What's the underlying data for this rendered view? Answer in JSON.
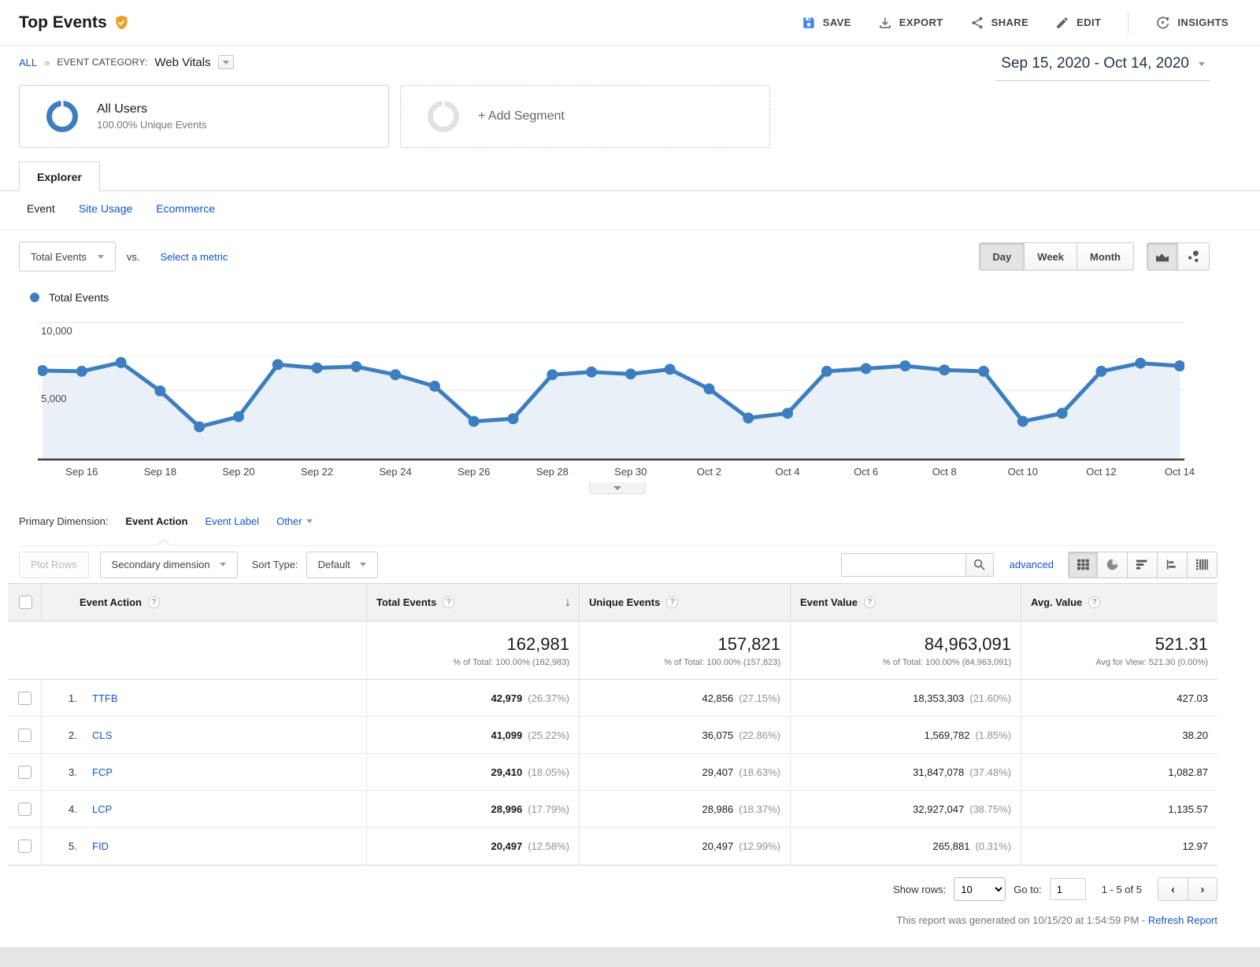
{
  "header": {
    "title": "Top Events",
    "actions": [
      {
        "label": "SAVE",
        "icon": "save-icon"
      },
      {
        "label": "EXPORT",
        "icon": "export-icon"
      },
      {
        "label": "SHARE",
        "icon": "share-icon"
      },
      {
        "label": "EDIT",
        "icon": "edit-icon"
      },
      {
        "label": "INSIGHTS",
        "icon": "insights-icon"
      }
    ]
  },
  "breadcrumb": {
    "all": "ALL",
    "separator": "»",
    "category_label": "EVENT CATEGORY:",
    "category_value": "Web Vitals"
  },
  "date_range": "Sep 15, 2020 - Oct 14, 2020",
  "segments": {
    "all_users": {
      "title": "All Users",
      "subtitle": "100.00% Unique Events"
    },
    "add_segment": "+ Add Segment"
  },
  "tabs": {
    "explorer": "Explorer",
    "subtabs": [
      {
        "label": "Event",
        "active": true
      },
      {
        "label": "Site Usage",
        "active": false
      },
      {
        "label": "Ecommerce",
        "active": false
      }
    ]
  },
  "metric_bar": {
    "metric": "Total Events",
    "vs": "vs.",
    "select_metric": "Select a metric",
    "granularity": [
      "Day",
      "Week",
      "Month"
    ],
    "active_granularity": "Day"
  },
  "legend": {
    "label": "Total Events",
    "color": "#3c7ebf"
  },
  "chart_data": {
    "type": "line",
    "title": "Total Events",
    "x": [
      "Sep 15",
      "Sep 16",
      "Sep 17",
      "Sep 18",
      "Sep 19",
      "Sep 20",
      "Sep 21",
      "Sep 22",
      "Sep 23",
      "Sep 24",
      "Sep 25",
      "Sep 26",
      "Sep 27",
      "Sep 28",
      "Sep 29",
      "Sep 30",
      "Oct 1",
      "Oct 2",
      "Oct 3",
      "Oct 4",
      "Oct 5",
      "Oct 6",
      "Oct 7",
      "Oct 8",
      "Oct 9",
      "Oct 10",
      "Oct 11",
      "Oct 12",
      "Oct 13",
      "Oct 14"
    ],
    "series": [
      {
        "name": "Total Events",
        "values": [
          6450,
          6400,
          7050,
          4950,
          2300,
          3050,
          6900,
          6650,
          6750,
          6150,
          5300,
          2700,
          2900,
          6150,
          6350,
          6200,
          6550,
          5100,
          2950,
          3300,
          6400,
          6600,
          6800,
          6500,
          6400,
          2700,
          3300,
          6400,
          7000,
          6800
        ]
      }
    ],
    "ylim": [
      0,
      10000
    ],
    "ytick_labels": [
      "5,000",
      "10,000"
    ],
    "yticks": [
      5000,
      10000
    ],
    "gridlines": [
      2500,
      5000,
      7500,
      10000
    ],
    "xtick_every": 2,
    "grid": true,
    "legend_position": "top-left",
    "line_color": "#3c7ebf",
    "fill_color": "#e9f0f8"
  },
  "dimension_bar": {
    "label": "Primary Dimension:",
    "options": [
      "Event Action",
      "Event Label",
      "Other"
    ],
    "active": "Event Action"
  },
  "table_controls": {
    "plot_rows": "Plot Rows",
    "secondary_dimension": "Secondary dimension",
    "sort_type_label": "Sort Type:",
    "sort_type_value": "Default",
    "search_value": "",
    "advanced": "advanced"
  },
  "table": {
    "columns": [
      "Event Action",
      "Total Events",
      "Unique Events",
      "Event Value",
      "Avg. Value"
    ],
    "sorted_column": "Total Events",
    "summary": {
      "total_events": "162,981",
      "total_events_sub": "% of Total: 100.00% (162,983)",
      "unique_events": "157,821",
      "unique_events_sub": "% of Total: 100.00% (157,823)",
      "event_value": "84,963,091",
      "event_value_sub": "% of Total: 100.00% (84,963,091)",
      "avg_value": "521.31",
      "avg_value_sub": "Avg for View: 521.30 (0.00%)"
    },
    "rows": [
      {
        "index": "1.",
        "action": "TTFB",
        "total_events": "42,979",
        "total_events_pct": "(26.37%)",
        "unique_events": "42,856",
        "unique_events_pct": "(27.15%)",
        "event_value": "18,353,303",
        "event_value_pct": "(21.60%)",
        "avg_value": "427.03"
      },
      {
        "index": "2.",
        "action": "CLS",
        "total_events": "41,099",
        "total_events_pct": "(25.22%)",
        "unique_events": "36,075",
        "unique_events_pct": "(22.86%)",
        "event_value": "1,569,782",
        "event_value_pct": "(1.85%)",
        "avg_value": "38.20"
      },
      {
        "index": "3.",
        "action": "FCP",
        "total_events": "29,410",
        "total_events_pct": "(18.05%)",
        "unique_events": "29,407",
        "unique_events_pct": "(18.63%)",
        "event_value": "31,847,078",
        "event_value_pct": "(37.48%)",
        "avg_value": "1,082.87"
      },
      {
        "index": "4.",
        "action": "LCP",
        "total_events": "28,996",
        "total_events_pct": "(17.79%)",
        "unique_events": "28,986",
        "unique_events_pct": "(18.37%)",
        "event_value": "32,927,047",
        "event_value_pct": "(38.75%)",
        "avg_value": "1,135.57"
      },
      {
        "index": "5.",
        "action": "FID",
        "total_events": "20,497",
        "total_events_pct": "(12.58%)",
        "unique_events": "20,497",
        "unique_events_pct": "(12.99%)",
        "event_value": "265,881",
        "event_value_pct": "(0.31%)",
        "avg_value": "12.97"
      }
    ]
  },
  "pagination": {
    "show_rows_label": "Show rows:",
    "show_rows_value": "10",
    "goto_label": "Go to:",
    "goto_value": "1",
    "range": "1 - 5 of 5"
  },
  "footer_note": {
    "text": "This report was generated on 10/15/20 at 1:54:59 PM - ",
    "link": "Refresh Report"
  }
}
